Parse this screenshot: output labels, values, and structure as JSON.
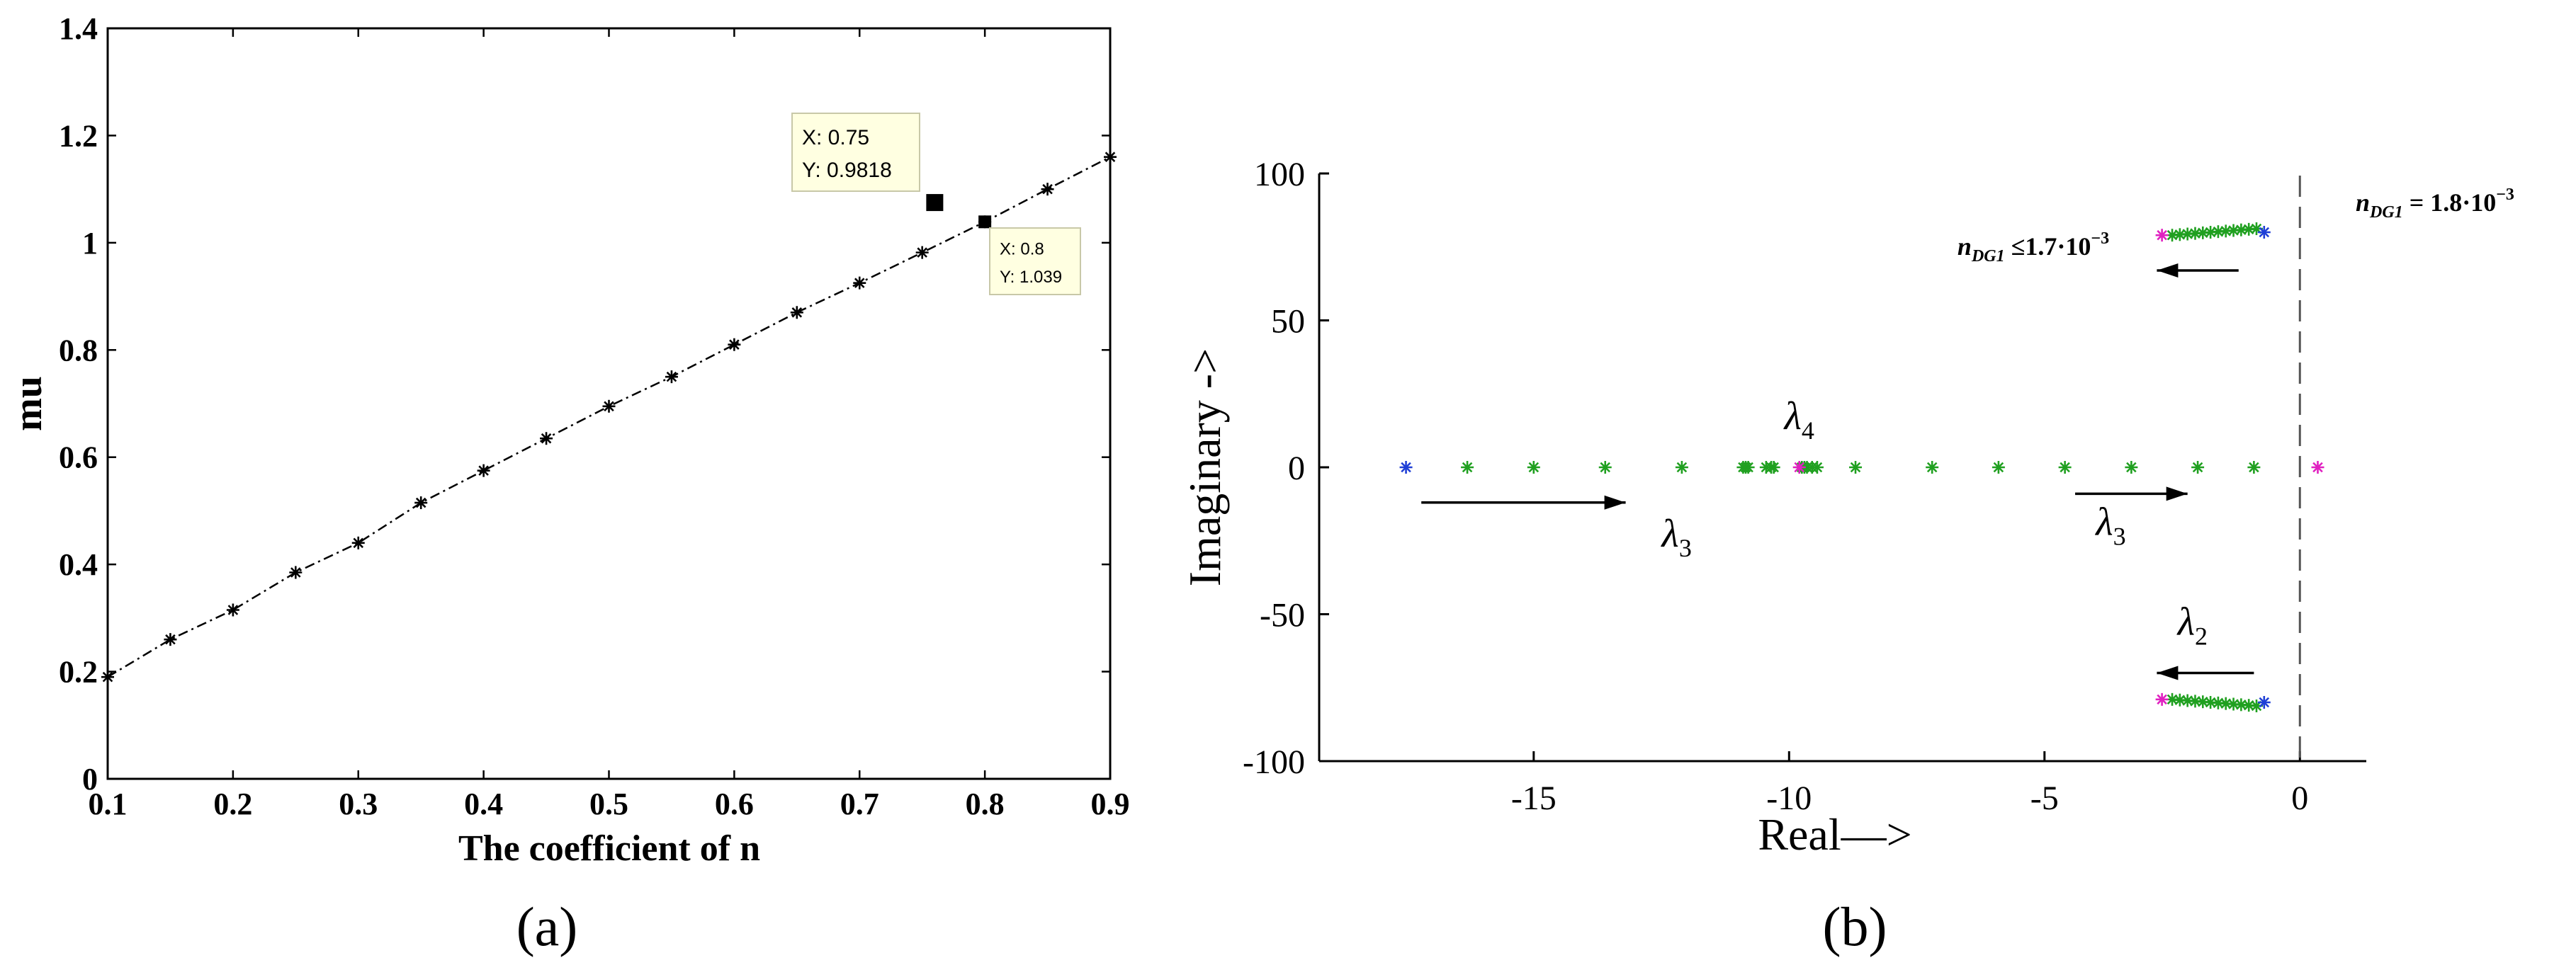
{
  "chart_data": [
    {
      "panel": "(a)",
      "type": "line",
      "title": "",
      "xlabel": "The coefficient of n",
      "ylabel": "mu",
      "xlim": [
        0.1,
        0.9
      ],
      "ylim": [
        0,
        1.4
      ],
      "xticks": [
        "0.1",
        "0.2",
        "0.3",
        "0.4",
        "0.5",
        "0.6",
        "0.7",
        "0.8",
        "0.9"
      ],
      "yticks": [
        "0",
        "0.2",
        "0.4",
        "0.6",
        "0.8",
        "1",
        "1.2",
        "1.4"
      ],
      "grid": false,
      "series": [
        {
          "marker": "*",
          "line_style": "dash-dot",
          "color": "#000000",
          "points": [
            {
              "x": 0.1,
              "y": 0.19
            },
            {
              "x": 0.15,
              "y": 0.26
            },
            {
              "x": 0.2,
              "y": 0.315
            },
            {
              "x": 0.25,
              "y": 0.385
            },
            {
              "x": 0.3,
              "y": 0.44
            },
            {
              "x": 0.35,
              "y": 0.515
            },
            {
              "x": 0.4,
              "y": 0.575
            },
            {
              "x": 0.45,
              "y": 0.635
            },
            {
              "x": 0.5,
              "y": 0.695
            },
            {
              "x": 0.55,
              "y": 0.75
            },
            {
              "x": 0.6,
              "y": 0.81
            },
            {
              "x": 0.65,
              "y": 0.87
            },
            {
              "x": 0.7,
              "y": 0.925
            },
            {
              "x": 0.75,
              "y": 0.9818
            },
            {
              "x": 0.8,
              "y": 1.039
            },
            {
              "x": 0.85,
              "y": 1.1
            },
            {
              "x": 0.9,
              "y": 1.16
            }
          ]
        }
      ],
      "annotations": [
        {
          "x_text": "X: 0.75",
          "y_text": "Y: 0.9818",
          "marker_x": 0.76,
          "marker_y": 1.075
        },
        {
          "x_text": "X: 0.8",
          "y_text": "Y: 1.039",
          "marker_x": 0.8,
          "marker_y": 1.039
        }
      ]
    },
    {
      "panel": "(b)",
      "type": "scatter",
      "title": "",
      "xlabel": "Real—>",
      "ylabel": "Imaginary ->",
      "xlim": [
        -19.2,
        1.3
      ],
      "ylim": [
        -100,
        100
      ],
      "xticks": [
        "-15",
        "-10",
        "-5",
        "0"
      ],
      "yticks": [
        "100",
        "50",
        "0",
        "-50",
        "-100"
      ],
      "grid": false,
      "vline_x": 0,
      "colors": {
        "blue": "#1f3fd6",
        "green": "#20a020",
        "magenta": "#e020c0"
      },
      "threshold_left": {
        "main": "n",
        "sub": "DG1",
        "rest": " ≤1.7·10",
        "sup": "−3"
      },
      "threshold_right": {
        "main": "n",
        "sub": "DG1",
        "rest": " = 1.8·10",
        "sup": "−3"
      },
      "eig_labels": [
        {
          "main": "λ",
          "sub": "3",
          "x": -12.2,
          "y": -27
        },
        {
          "main": "λ",
          "sub": "4",
          "x": -9.8,
          "y": 13
        },
        {
          "main": "λ",
          "sub": "3",
          "x": -3.7,
          "y": -23
        },
        {
          "main": "λ",
          "sub": "2",
          "x": -2.1,
          "y": -57
        }
      ],
      "arrows": [
        {
          "from": [
            -17.2,
            -12
          ],
          "to": [
            -13.2,
            -12
          ]
        },
        {
          "from": [
            -4.4,
            -9
          ],
          "to": [
            -2.2,
            -9
          ]
        },
        {
          "from": [
            -1.2,
            67
          ],
          "to": [
            -2.8,
            67
          ]
        },
        {
          "from": [
            -0.9,
            -70
          ],
          "to": [
            -2.8,
            -70
          ]
        }
      ],
      "series": [
        {
          "color": "blue",
          "points": [
            [
              -17.5,
              0
            ],
            [
              -0.7,
              80
            ],
            [
              -0.7,
              -80
            ]
          ]
        },
        {
          "color": "magenta",
          "points": [
            [
              0.35,
              0
            ],
            [
              -2.7,
              79
            ],
            [
              -2.7,
              -79
            ],
            [
              -9.8,
              0
            ]
          ]
        },
        {
          "color": "green",
          "points": [
            [
              -16.3,
              0
            ],
            [
              -15.0,
              0
            ],
            [
              -13.6,
              0
            ],
            [
              -12.1,
              0
            ],
            [
              -10.9,
              0
            ],
            [
              -10.85,
              0
            ],
            [
              -10.8,
              0
            ],
            [
              -10.45,
              0
            ],
            [
              -10.35,
              0
            ],
            [
              -10.3,
              0
            ],
            [
              -9.75,
              0
            ],
            [
              -9.7,
              0
            ],
            [
              -9.65,
              0
            ],
            [
              -9.55,
              0
            ],
            [
              -9.45,
              0
            ],
            [
              -8.7,
              0
            ],
            [
              -7.2,
              0
            ],
            [
              -5.9,
              0
            ],
            [
              -4.6,
              0
            ],
            [
              -3.3,
              0
            ],
            [
              -2.0,
              0
            ],
            [
              -0.9,
              0
            ],
            [
              -2.5,
              79
            ],
            [
              -2.35,
              79.2
            ],
            [
              -2.2,
              79.4
            ],
            [
              -2.05,
              79.6
            ],
            [
              -1.9,
              79.8
            ],
            [
              -1.75,
              80
            ],
            [
              -1.6,
              80.2
            ],
            [
              -1.45,
              80.4
            ],
            [
              -1.3,
              80.6
            ],
            [
              -1.15,
              80.8
            ],
            [
              -1.0,
              81
            ],
            [
              -0.85,
              81.2
            ],
            [
              -2.5,
              -79
            ],
            [
              -2.35,
              -79.2
            ],
            [
              -2.2,
              -79.4
            ],
            [
              -2.05,
              -79.6
            ],
            [
              -1.9,
              -79.8
            ],
            [
              -1.75,
              -80
            ],
            [
              -1.6,
              -80.2
            ],
            [
              -1.45,
              -80.4
            ],
            [
              -1.3,
              -80.6
            ],
            [
              -1.15,
              -80.8
            ],
            [
              -1.0,
              -81
            ],
            [
              -0.85,
              -81.2
            ]
          ]
        }
      ]
    }
  ]
}
